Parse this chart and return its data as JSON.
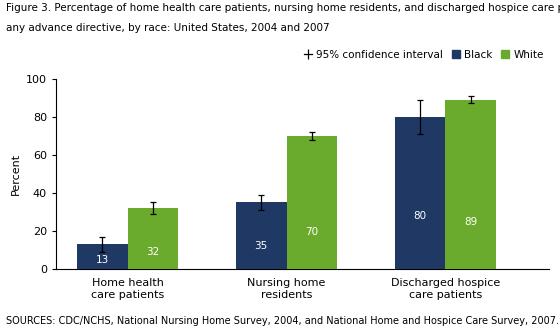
{
  "title_line1": "Figure 3. Percentage of home health care patients, nursing home residents, and discharged hospice care patients with",
  "title_line2": "any advance directive, by race: United States, 2004 and 2007",
  "source_text": "SOURCES: CDC/NCHS, National Nursing Home Survey, 2004, and National Home and Hospice Care Survey, 2007.",
  "categories": [
    "Home health\ncare patients",
    "Nursing home\nresidents",
    "Discharged hospice\ncare patients"
  ],
  "black_values": [
    13,
    35,
    80
  ],
  "white_values": [
    32,
    70,
    89
  ],
  "black_errors": [
    4,
    4,
    9
  ],
  "white_errors": [
    3,
    2,
    2
  ],
  "black_color": "#1F3864",
  "white_color": "#6AAB2E",
  "ylabel": "Percent",
  "ylim": [
    0,
    100
  ],
  "yticks": [
    0,
    20,
    40,
    60,
    80,
    100
  ],
  "bar_width": 0.32,
  "group_positions": [
    1,
    2,
    3
  ],
  "legend_label_black": "Black",
  "legend_label_white": "White",
  "ci_label": "95% confidence interval",
  "title_fontsize": 7.5,
  "axis_fontsize": 8,
  "tick_fontsize": 8,
  "label_fontsize": 7.5,
  "source_fontsize": 7
}
